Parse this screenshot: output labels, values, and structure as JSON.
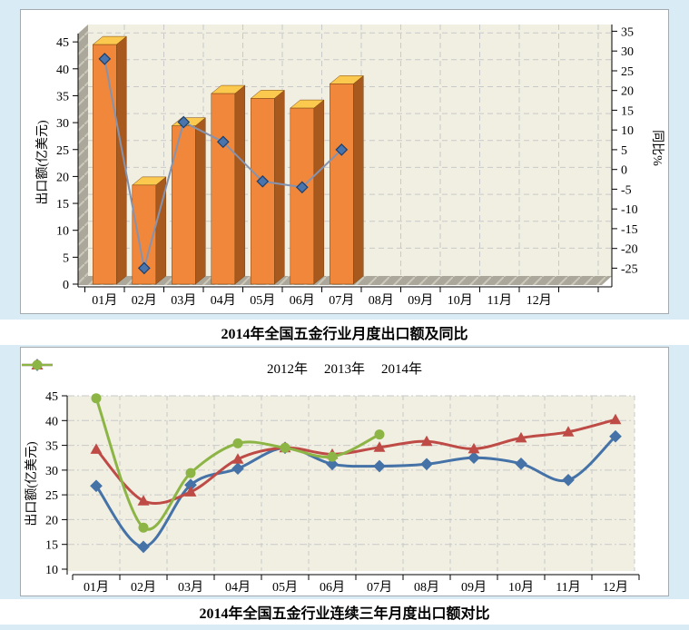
{
  "page": {
    "background": "#d9ecf5",
    "panel_background": "#ffffff",
    "panel_border": "#a3abb0"
  },
  "chart_data": [
    {
      "type": "bar",
      "subtype": "3d-bar-with-line",
      "title": "2014年全国五金行业月度出口额及同比",
      "categories": [
        "01月",
        "02月",
        "03月",
        "04月",
        "05月",
        "06月",
        "07月",
        "08月",
        "09月",
        "10月",
        "11月",
        "12月"
      ],
      "bar_series": {
        "name": "出口额",
        "axis": "left",
        "values": [
          44.5,
          18.4,
          29.4,
          35.4,
          34.5,
          32.7,
          37.2
        ],
        "color_front": "#f0873b",
        "color_side": "#a85a1e",
        "color_top": "#fbc94e"
      },
      "line_series": {
        "name": "同比",
        "axis": "right",
        "values": [
          28,
          -25,
          12,
          7,
          -3,
          -4.5,
          5
        ],
        "color": "#8593ae",
        "marker": "diamond",
        "marker_color": "#4a74ac",
        "marker_edge": "#1c3f6e"
      },
      "ylabel_left": "出口额(亿美元)",
      "ylabel_right": "同比%",
      "ylim_left": [
        0,
        45
      ],
      "ylim_right": [
        -25,
        35
      ],
      "yticks_left": [
        0,
        5,
        10,
        15,
        20,
        25,
        30,
        35,
        40,
        45
      ],
      "yticks_right": [
        -25,
        -20,
        -15,
        -10,
        -5,
        0,
        5,
        10,
        15,
        20,
        25,
        30,
        35
      ],
      "grid": true,
      "plot_bg": "#f0efe2",
      "wall_color": "#aba89b",
      "wall_hatch": "#ccc9ba",
      "grid_color": "#c9c9c9"
    },
    {
      "type": "line",
      "subtype": "smooth-line",
      "title": "2014年全国五金行业连续三年月度出口额对比",
      "categories": [
        "01月",
        "02月",
        "03月",
        "04月",
        "05月",
        "06月",
        "07月",
        "08月",
        "09月",
        "10月",
        "11月",
        "12月"
      ],
      "series": [
        {
          "name": "2012年",
          "marker": "diamond",
          "color": "#4572a7",
          "values": [
            26.8,
            14.5,
            27.0,
            30.3,
            34.5,
            31.2,
            30.8,
            31.2,
            32.5,
            31.3,
            28.0,
            36.8
          ]
        },
        {
          "name": "2013年",
          "marker": "triangle",
          "color": "#bf4b47",
          "values": [
            34.2,
            23.8,
            25.6,
            32.2,
            34.5,
            33.2,
            34.6,
            35.8,
            34.3,
            36.5,
            37.7,
            40.2
          ]
        },
        {
          "name": "2014年",
          "marker": "circle",
          "color": "#8db546",
          "values": [
            44.5,
            18.4,
            29.4,
            35.4,
            34.5,
            32.7,
            37.2
          ]
        }
      ],
      "ylabel": "出口额(亿美元)",
      "ylim": [
        10,
        45
      ],
      "yticks": [
        10,
        15,
        20,
        25,
        30,
        35,
        40,
        45
      ],
      "legend_position": "top",
      "grid": true,
      "plot_bg": "#f0efe2",
      "grid_color": "#c9c9c9"
    }
  ]
}
